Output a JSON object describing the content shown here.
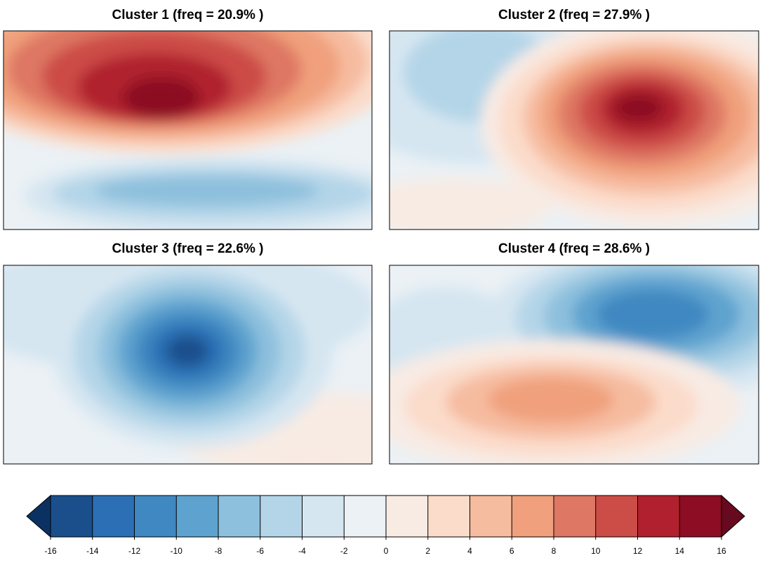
{
  "panels": [
    {
      "title": "Cluster 1 (freq = 20.9% )"
    },
    {
      "title": "Cluster 2 (freq = 27.9% )"
    },
    {
      "title": "Cluster 3 (freq = 22.6% )"
    },
    {
      "title": "Cluster 4 (freq = 28.6% )"
    }
  ],
  "colorbar": {
    "ticks": [
      -16,
      -14,
      -12,
      -10,
      -8,
      -6,
      -4,
      -2,
      0,
      2,
      4,
      6,
      8,
      10,
      12,
      14,
      16
    ],
    "colors": [
      "#1a4f8c",
      "#2c6fb5",
      "#3f88c1",
      "#5ea3cf",
      "#8dc0dd",
      "#b4d5e8",
      "#d5e6f1",
      "#ebf1f5",
      "#f8ebe4",
      "#fbdccb",
      "#f6bca0",
      "#f0a07c",
      "#de7763",
      "#cc4c47",
      "#b0202e",
      "#8c0d24"
    ],
    "under_color": "#0a3161",
    "over_color": "#670a1f"
  }
}
